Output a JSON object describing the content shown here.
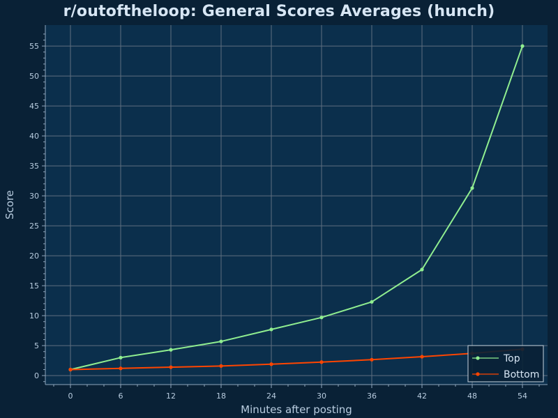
{
  "chart_data": {
    "type": "line",
    "title": "r/outoftheloop: General Scores Averages (hunch)",
    "xlabel": "Minutes after posting",
    "ylabel": "Score",
    "x": [
      0,
      6,
      12,
      18,
      24,
      30,
      36,
      42,
      48,
      54
    ],
    "xticks": [
      0,
      6,
      12,
      18,
      24,
      30,
      36,
      42,
      48,
      54
    ],
    "yticks": [
      0,
      5,
      10,
      15,
      20,
      25,
      30,
      35,
      40,
      45,
      50,
      55
    ],
    "xlim": [
      -3,
      57
    ],
    "ylim": [
      -1.5,
      58.5
    ],
    "grid": true,
    "legend_position": "lower-right",
    "series": [
      {
        "name": "Top",
        "color": "#90ee90",
        "values": [
          1.0,
          3.0,
          4.3,
          5.7,
          7.7,
          9.7,
          12.3,
          17.7,
          31.3,
          55.0
        ]
      },
      {
        "name": "Bottom",
        "color": "#ff4500",
        "values": [
          1.0,
          1.2,
          1.4,
          1.6,
          1.9,
          2.25,
          2.65,
          3.15,
          3.7,
          4.4
        ]
      }
    ]
  }
}
